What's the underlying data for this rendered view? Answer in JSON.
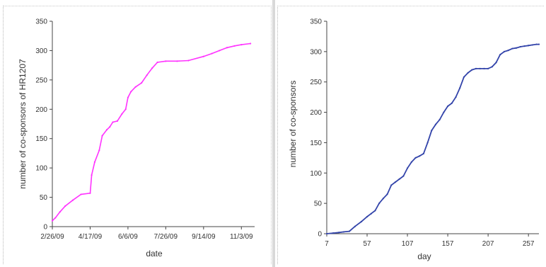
{
  "chart_data": [
    {
      "type": "line",
      "xlabel": "date",
      "ylabel": "number of co-sponsors of HR1207",
      "ylim": [
        0,
        350
      ],
      "yticks": [
        0,
        50,
        100,
        150,
        200,
        250,
        300,
        350
      ],
      "xtick_labels": [
        "2/26/09",
        "4/17/09",
        "6/6/09",
        "7/26/09",
        "9/14/09",
        "11/3/09"
      ],
      "x_dates": [
        "2009-02-26",
        "2009-03-02",
        "2009-03-08",
        "2009-03-15",
        "2009-03-25",
        "2009-04-05",
        "2009-04-17",
        "2009-04-19",
        "2009-04-23",
        "2009-04-29",
        "2009-05-03",
        "2009-05-09",
        "2009-05-13",
        "2009-05-17",
        "2009-05-23",
        "2009-05-29",
        "2009-06-03",
        "2009-06-06",
        "2009-06-10",
        "2009-06-16",
        "2009-06-24",
        "2009-07-01",
        "2009-07-08",
        "2009-07-15",
        "2009-07-26",
        "2009-08-10",
        "2009-08-25",
        "2009-09-14",
        "2009-09-25",
        "2009-10-05",
        "2009-10-15",
        "2009-10-25",
        "2009-11-03",
        "2009-11-15"
      ],
      "values": [
        10,
        15,
        25,
        35,
        45,
        55,
        57,
        88,
        110,
        130,
        155,
        165,
        170,
        178,
        180,
        192,
        200,
        220,
        230,
        238,
        245,
        258,
        270,
        280,
        282,
        282,
        283,
        290,
        295,
        300,
        305,
        308,
        310,
        312
      ],
      "color": "#ff33ff",
      "grid": false
    },
    {
      "type": "line",
      "xlabel": "day",
      "ylabel": "number of co-sponsors",
      "ylim": [
        0,
        350
      ],
      "xlim": [
        7,
        270
      ],
      "yticks": [
        0,
        50,
        100,
        150,
        200,
        250,
        300,
        350
      ],
      "xticks": [
        7,
        57,
        107,
        157,
        207,
        257
      ],
      "x": [
        7,
        15,
        22,
        28,
        35,
        42,
        50,
        57,
        62,
        67,
        72,
        77,
        82,
        87,
        92,
        97,
        102,
        107,
        112,
        117,
        122,
        127,
        132,
        137,
        142,
        147,
        152,
        157,
        162,
        167,
        172,
        177,
        182,
        187,
        192,
        197,
        202,
        207,
        212,
        217,
        222,
        227,
        232,
        237,
        242,
        247,
        252,
        257,
        262,
        267,
        270
      ],
      "values": [
        0,
        1,
        2,
        3,
        4,
        12,
        20,
        28,
        33,
        38,
        50,
        58,
        65,
        80,
        85,
        90,
        95,
        108,
        118,
        125,
        128,
        132,
        150,
        170,
        180,
        188,
        200,
        210,
        215,
        225,
        240,
        258,
        265,
        270,
        272,
        272,
        272,
        272,
        275,
        282,
        295,
        300,
        302,
        305,
        306,
        308,
        309,
        310,
        311,
        312,
        312
      ],
      "color": "#3344aa",
      "grid": false
    }
  ]
}
